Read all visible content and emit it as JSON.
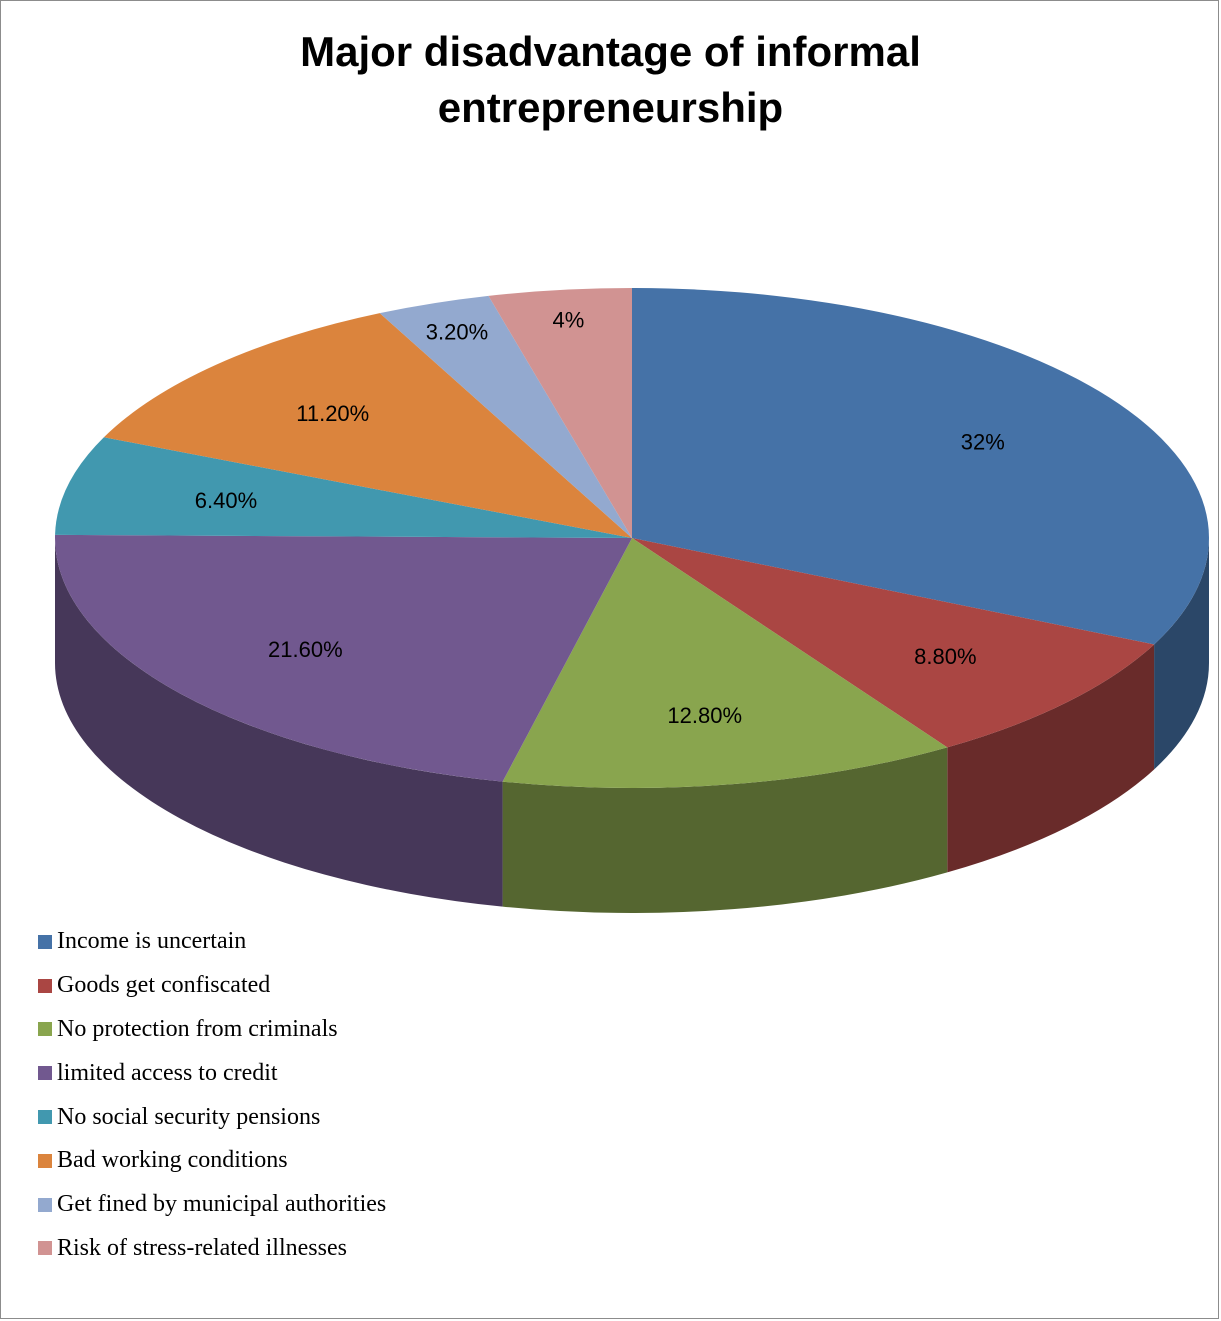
{
  "chart_data": {
    "type": "pie",
    "title_lines": [
      "Major disadvantage of informal",
      "entrepreneurship"
    ],
    "slices": [
      {
        "label": "Income is uncertain",
        "value": 32,
        "display": "32%",
        "color": "#4572A7"
      },
      {
        "label": "Goods get confiscated",
        "value": 8.8,
        "display": "8.80%",
        "color": "#AA4643"
      },
      {
        "label": "No protection from criminals",
        "value": 12.8,
        "display": "12.80%",
        "color": "#89A54E"
      },
      {
        "label": "limited access to credit",
        "value": 21.6,
        "display": "21.60%",
        "color": "#71588F"
      },
      {
        "label": "No social security pensions",
        "value": 6.4,
        "display": "6.40%",
        "color": "#4198AF"
      },
      {
        "label": "Bad working conditions",
        "value": 11.2,
        "display": "11.20%",
        "color": "#DB843D"
      },
      {
        "label": "Get fined by municipal authorities",
        "value": 3.2,
        "display": "3.20%",
        "color": "#93A9CF"
      },
      {
        "label": "Risk of stress-related illnesses",
        "value": 4,
        "display": "4%",
        "color": "#D19392"
      }
    ],
    "legend_position": "bottom-left"
  }
}
